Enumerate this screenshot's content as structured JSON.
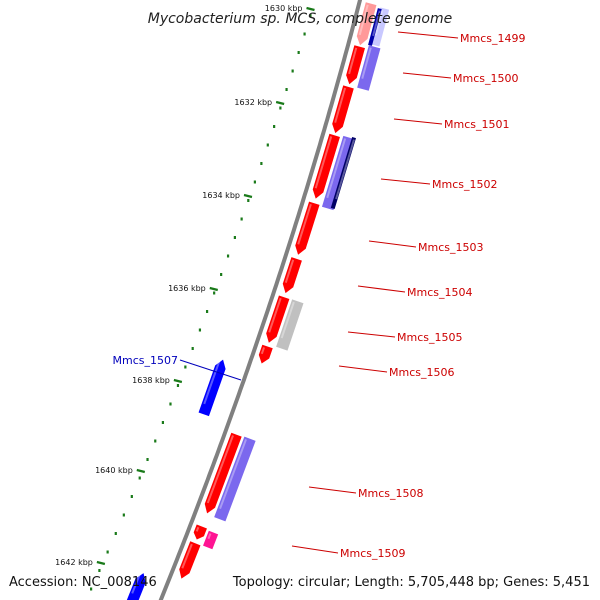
{
  "title": "Mycobacterium sp. MCS, complete genome",
  "footer": {
    "accession": "Accession: NC_008146",
    "topology": "Topology: circular; Length: 5,705,448 bp; Genes: 5,451"
  },
  "colors": {
    "forward_gene": "#ff0000",
    "reverse_gene": "#0000ff",
    "reverse_faded": "#7b68ee",
    "other_gene": "#c0c0c0",
    "rna_gene": "#ff1493",
    "backbone": "#808080",
    "tick": "#1a7a1a",
    "label_red": "#cc0000",
    "label_blue": "#0000bb"
  },
  "ticks": [
    {
      "label": "1630 kbp",
      "faded": true
    },
    {
      "label": "1632 kbp"
    },
    {
      "label": "1634 kbp"
    },
    {
      "label": "1636 kbp"
    },
    {
      "label": "1638 kbp"
    },
    {
      "label": "1640 kbp"
    },
    {
      "label": "1642 kbp"
    }
  ],
  "genes": [
    {
      "name": "Mmcs_1499",
      "strand": "forward"
    },
    {
      "name": "Mmcs_1500",
      "strand": "forward"
    },
    {
      "name": "Mmcs_1501",
      "strand": "forward"
    },
    {
      "name": "Mmcs_1502",
      "strand": "forward"
    },
    {
      "name": "Mmcs_1503",
      "strand": "forward"
    },
    {
      "name": "Mmcs_1504",
      "strand": "forward"
    },
    {
      "name": "Mmcs_1505",
      "strand": "forward"
    },
    {
      "name": "Mmcs_1506",
      "strand": "forward"
    },
    {
      "name": "Mmcs_1507",
      "strand": "reverse"
    },
    {
      "name": "Mmcs_1508",
      "strand": "forward"
    },
    {
      "name": "Mmcs_1509",
      "strand": "forward"
    }
  ]
}
